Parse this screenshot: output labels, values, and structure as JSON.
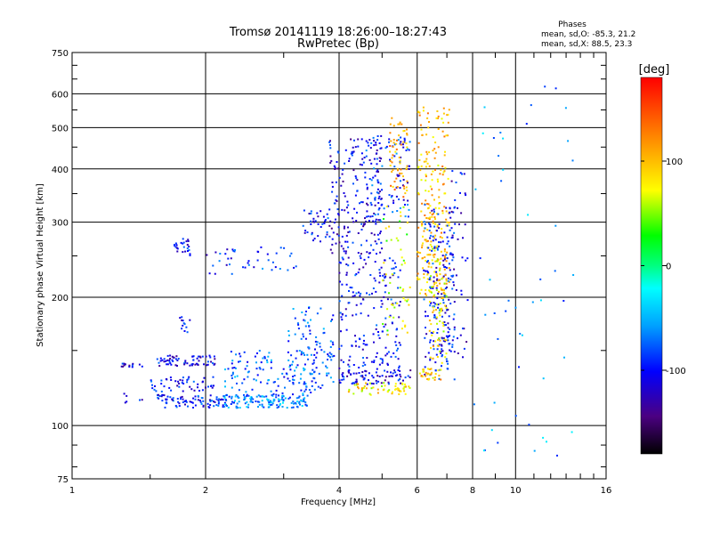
{
  "chart_data": {
    "type": "scatter",
    "title": "Tromsø 20141119 18:26:00–18:27:43",
    "subtitle": "RwPretec (Bp)",
    "xlabel": "Frequency [MHz]",
    "ylabel": "Stationary phase Virtual Height [km]",
    "x_scale": "log",
    "y_scale": "log",
    "xlim": [
      1,
      16
    ],
    "ylim": [
      75,
      750
    ],
    "x_ticks": [
      1,
      2,
      4,
      6,
      8,
      10,
      16
    ],
    "x_tick_labels": [
      "1",
      "2",
      "4",
      "6",
      "8",
      "10",
      "16"
    ],
    "y_ticks": [
      75,
      100,
      200,
      300,
      400,
      500,
      600,
      750
    ],
    "y_tick_labels": [
      "75",
      "100",
      "200",
      "300",
      "400",
      "500",
      "600",
      "750"
    ],
    "grid": true,
    "stats": {
      "heading": "Phases",
      "line_o": "mean, sd,O: -85.3, 21.2",
      "line_x": "mean, sd,X: 88.5, 23.3"
    },
    "colorbar": {
      "label": "[deg]",
      "range": [
        -180,
        180
      ],
      "ticks": [
        100,
        0,
        -100
      ],
      "tick_labels": [
        "100",
        "0",
        "-100"
      ],
      "colormap": "rainbow"
    },
    "color_dimension": "phase [deg]",
    "clusters": [
      {
        "f": [
          1.25,
          1.45
        ],
        "h": [
          137,
          140
        ],
        "phase": -110,
        "n": 14
      },
      {
        "f": [
          1.3,
          1.45
        ],
        "h": [
          113,
          122
        ],
        "phase": -105,
        "n": 6
      },
      {
        "f": [
          1.55,
          2.1
        ],
        "h": [
          138,
          146
        ],
        "phase": -105,
        "n": 70
      },
      {
        "f": [
          1.5,
          2.1
        ],
        "h": [
          120,
          130
        ],
        "phase": -100,
        "n": 50
      },
      {
        "f": [
          1.55,
          2.3
        ],
        "h": [
          110,
          118
        ],
        "phase": -95,
        "n": 90
      },
      {
        "f": [
          1.7,
          1.85
        ],
        "h": [
          250,
          275
        ],
        "phase": -105,
        "n": 25
      },
      {
        "f": [
          1.75,
          1.85
        ],
        "h": [
          165,
          180
        ],
        "phase": -100,
        "n": 12
      },
      {
        "f": [
          2.0,
          2.4
        ],
        "h": [
          225,
          260
        ],
        "phase": -95,
        "n": 18
      },
      {
        "f": [
          2.2,
          3.4
        ],
        "h": [
          110,
          118
        ],
        "phase": -60,
        "n": 140
      },
      {
        "f": [
          2.2,
          3.6
        ],
        "h": [
          118,
          150
        ],
        "phase": -75,
        "n": 120
      },
      {
        "f": [
          2.4,
          3.2
        ],
        "h": [
          230,
          270
        ],
        "phase": -85,
        "n": 25
      },
      {
        "f": [
          3.0,
          3.9
        ],
        "h": [
          120,
          190
        ],
        "phase": -80,
        "n": 100
      },
      {
        "f": [
          3.3,
          3.8
        ],
        "h": [
          270,
          320
        ],
        "phase": -100,
        "n": 35
      },
      {
        "f": [
          3.8,
          5.0
        ],
        "h": [
          250,
          470
        ],
        "phase": -110,
        "n": 180
      },
      {
        "f": [
          4.0,
          5.5
        ],
        "h": [
          130,
          250
        ],
        "phase": -100,
        "n": 200
      },
      {
        "f": [
          4.0,
          5.8
        ],
        "h": [
          125,
          135
        ],
        "phase": -110,
        "n": 60
      },
      {
        "f": [
          4.2,
          5.8
        ],
        "h": [
          118,
          126
        ],
        "phase": 80,
        "n": 60
      },
      {
        "f": [
          4.6,
          5.8
        ],
        "h": [
          300,
          480
        ],
        "phase": -90,
        "n": 110
      },
      {
        "f": [
          5.2,
          5.7
        ],
        "h": [
          340,
          530
        ],
        "phase": 110,
        "n": 60
      },
      {
        "f": [
          5.0,
          5.8
        ],
        "h": [
          160,
          330
        ],
        "phase": 60,
        "n": 50
      },
      {
        "f": [
          6.0,
          7.1
        ],
        "h": [
          200,
          560
        ],
        "phase": 100,
        "n": 230
      },
      {
        "f": [
          6.2,
          7.3
        ],
        "h": [
          128,
          330
        ],
        "phase": -100,
        "n": 200
      },
      {
        "f": [
          6.4,
          7.0
        ],
        "h": [
          140,
          260
        ],
        "phase": 85,
        "n": 80
      },
      {
        "f": [
          6.0,
          6.8
        ],
        "h": [
          128,
          136
        ],
        "phase": 95,
        "n": 30
      },
      {
        "f": [
          7.0,
          7.8
        ],
        "h": [
          140,
          400
        ],
        "phase": -110,
        "n": 50
      },
      {
        "f": [
          8.0,
          13.5
        ],
        "h": [
          85,
          650
        ],
        "phase": -60,
        "n": 50
      }
    ]
  }
}
